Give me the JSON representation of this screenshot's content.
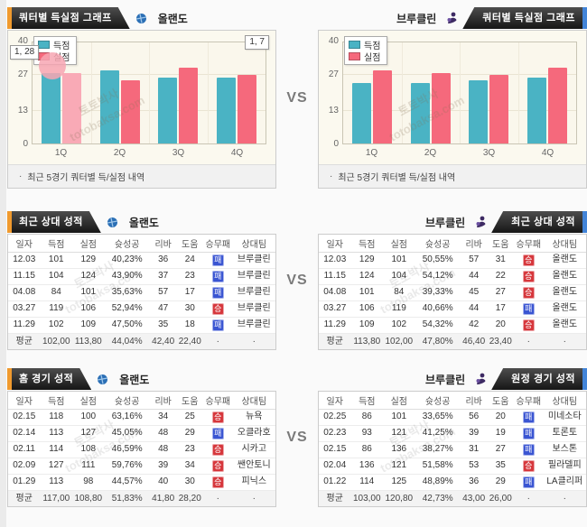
{
  "vs_label": "VS",
  "watermark": "토토박사\ntotobaksa.com",
  "badge": {
    "win_label": "승",
    "loss_label": "패"
  },
  "colors": {
    "scored_bar": "#4ab3c4",
    "conceded_bar": "#f5697c",
    "conceded_bar_highlight": "#f9aab6",
    "win_badge": "#d6373c",
    "loss_badge": "#3a55d2",
    "left_tab_accent": "#f09a2e",
    "right_tab_accent": "#4284d8"
  },
  "chart_section": {
    "left": {
      "tab": "쿼터별 득실점 그래프",
      "team": "올랜도",
      "footer": "최근 5경기 쿼터별 득/실점 내역"
    },
    "right": {
      "tab": "쿼터별 득실점 그래프",
      "team": "브루클린",
      "footer": "최근 5경기 쿼터별 득/실점 내역"
    }
  },
  "chart_data": [
    {
      "type": "bar",
      "title": "올랜도 최근 5경기 쿼터별 득/실점",
      "categories": [
        "1Q",
        "2Q",
        "3Q",
        "4Q"
      ],
      "series": [
        {
          "name": "득점",
          "values": [
            28,
            29,
            26,
            26
          ]
        },
        {
          "name": "실점",
          "values": [
            28,
            25,
            30,
            27
          ]
        }
      ],
      "ylim": [
        0,
        40
      ],
      "yticks": [
        0,
        13,
        27,
        40
      ],
      "grid": true,
      "legend_position": "top-left",
      "highlight": {
        "series": 1,
        "index": 0
      },
      "annotations": [
        {
          "text": "1, 28",
          "pos": "a-legend"
        },
        {
          "text": "1, 7",
          "pos": "a-corner"
        }
      ]
    },
    {
      "type": "bar",
      "title": "브루클린 최근 5경기 쿼터별 득/실점",
      "categories": [
        "1Q",
        "2Q",
        "3Q",
        "4Q"
      ],
      "series": [
        {
          "name": "득점",
          "values": [
            24,
            24,
            25,
            26
          ]
        },
        {
          "name": "실점",
          "values": [
            29,
            28,
            27,
            30
          ]
        }
      ],
      "ylim": [
        0,
        40
      ],
      "yticks": [
        0,
        13,
        27,
        40
      ],
      "grid": true,
      "legend_position": "top-left",
      "annotations": []
    }
  ],
  "table_columns": [
    "일자",
    "득점",
    "실점",
    "슛성공",
    "리바",
    "도움",
    "승무패",
    "상대팀"
  ],
  "tables": {
    "recent_left": {
      "tab": "최근 상대 성적",
      "team": "올랜도",
      "rows": [
        [
          "12.03",
          "101",
          "129",
          "40,23%",
          "36",
          "24",
          "패",
          "브루클린"
        ],
        [
          "11.15",
          "104",
          "124",
          "43,90%",
          "37",
          "23",
          "패",
          "브루클린"
        ],
        [
          "04.08",
          "84",
          "101",
          "35,63%",
          "57",
          "17",
          "패",
          "브루클린"
        ],
        [
          "03.27",
          "119",
          "106",
          "52,94%",
          "47",
          "30",
          "승",
          "브루클린"
        ],
        [
          "11.29",
          "102",
          "109",
          "47,50%",
          "35",
          "18",
          "패",
          "브루클린"
        ]
      ],
      "average": [
        "평균",
        "102,00",
        "113,80",
        "44,04%",
        "42,40",
        "22,40",
        "·",
        "·"
      ]
    },
    "recent_right": {
      "tab": "최근 상대 성적",
      "team": "브루클린",
      "rows": [
        [
          "12.03",
          "129",
          "101",
          "50,55%",
          "57",
          "31",
          "승",
          "올랜도"
        ],
        [
          "11.15",
          "124",
          "104",
          "54,12%",
          "44",
          "22",
          "승",
          "올랜도"
        ],
        [
          "04.08",
          "101",
          "84",
          "39,33%",
          "45",
          "27",
          "승",
          "올랜도"
        ],
        [
          "03.27",
          "106",
          "119",
          "40,66%",
          "44",
          "17",
          "패",
          "올랜도"
        ],
        [
          "11.29",
          "109",
          "102",
          "54,32%",
          "42",
          "20",
          "승",
          "올랜도"
        ]
      ],
      "average": [
        "평균",
        "113,80",
        "102,00",
        "47,80%",
        "46,40",
        "23,40",
        "·",
        "·"
      ]
    },
    "home_left": {
      "tab": "홈 경기 성적",
      "team": "올랜도",
      "rows": [
        [
          "02.15",
          "118",
          "100",
          "63,16%",
          "34",
          "25",
          "승",
          "뉴욕"
        ],
        [
          "02.14",
          "113",
          "127",
          "45,05%",
          "48",
          "29",
          "패",
          "오클라호"
        ],
        [
          "02.11",
          "114",
          "108",
          "46,59%",
          "48",
          "23",
          "승",
          "시카고"
        ],
        [
          "02.09",
          "127",
          "111",
          "59,76%",
          "39",
          "34",
          "승",
          "쌘안토니"
        ],
        [
          "01.29",
          "113",
          "98",
          "44,57%",
          "40",
          "30",
          "승",
          "피닉스"
        ]
      ],
      "average": [
        "평균",
        "117,00",
        "108,80",
        "51,83%",
        "41,80",
        "28,20",
        "·",
        "·"
      ]
    },
    "away_right": {
      "tab": "원정 경기 성적",
      "team": "브루클린",
      "rows": [
        [
          "02.25",
          "86",
          "101",
          "33,65%",
          "56",
          "20",
          "패",
          "미네소타"
        ],
        [
          "02.23",
          "93",
          "121",
          "41,25%",
          "39",
          "19",
          "패",
          "토론토"
        ],
        [
          "02.15",
          "86",
          "136",
          "38,27%",
          "31",
          "27",
          "패",
          "보스톤"
        ],
        [
          "02.04",
          "136",
          "121",
          "51,58%",
          "53",
          "35",
          "승",
          "필라델피"
        ],
        [
          "01.22",
          "114",
          "125",
          "48,89%",
          "36",
          "29",
          "패",
          "LA클리퍼"
        ]
      ],
      "average": [
        "평균",
        "103,00",
        "120,80",
        "42,73%",
        "43,00",
        "26,00",
        "·",
        "·"
      ]
    }
  }
}
